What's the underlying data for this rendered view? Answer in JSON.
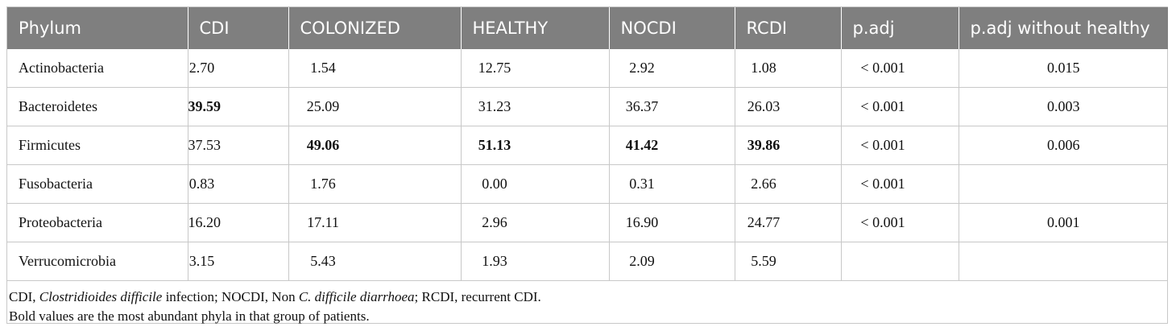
{
  "table": {
    "columns": [
      "Phylum",
      "CDI",
      "COLONIZED",
      "HEALTHY",
      "NOCDI",
      "RCDI",
      "p.adj",
      "p.adj without healthy"
    ],
    "rows": [
      {
        "cells": [
          "Actinobacteria",
          "2.70",
          "1.54",
          "12.75",
          "2.92",
          "1.08",
          "< 0.001",
          "0.015"
        ],
        "bold": []
      },
      {
        "cells": [
          "Bacteroidetes",
          "39.59",
          "25.09",
          "31.23",
          "36.37",
          "26.03",
          "< 0.001",
          "0.003"
        ],
        "bold": [
          1
        ]
      },
      {
        "cells": [
          "Firmicutes",
          "37.53",
          "49.06",
          "51.13",
          "41.42",
          "39.86",
          "< 0.001",
          "0.006"
        ],
        "bold": [
          2,
          3,
          4,
          5
        ]
      },
      {
        "cells": [
          "Fusobacteria",
          "0.83",
          "1.76",
          "0.00",
          "0.31",
          "2.66",
          "< 0.001",
          null
        ],
        "bold": []
      },
      {
        "cells": [
          "Proteobacteria",
          "16.20",
          "17.11",
          "2.96",
          "16.90",
          "24.77",
          "< 0.001",
          "0.001"
        ],
        "bold": []
      },
      {
        "cells": [
          "Verrucomicrobia",
          "3.15",
          "5.43",
          "1.93",
          "2.09",
          "5.59",
          null,
          null
        ],
        "bold": []
      }
    ],
    "notes": [
      [
        {
          "text": "CDI, "
        },
        {
          "text": "Clostridioides difficile",
          "italic": true
        },
        {
          "text": " infection; NOCDI, Non "
        },
        {
          "text": "C. difficile diarrhoea",
          "italic": true
        },
        {
          "text": "; RCDI, recurrent CDI."
        }
      ],
      [
        {
          "text": "Bold values are the most abundant phyla in that group of patients."
        }
      ]
    ]
  }
}
